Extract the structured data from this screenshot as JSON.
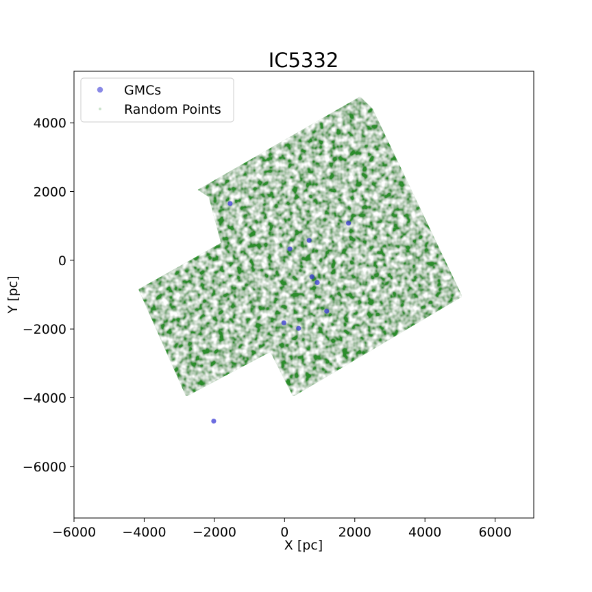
{
  "chart_data": {
    "type": "scatter",
    "title": "IC5332",
    "xlabel": "X [pc]",
    "ylabel": "Y [pc]",
    "xlim": [
      -6000,
      7100
    ],
    "ylim": [
      -7500,
      5500
    ],
    "xticks": [
      -6000,
      -4000,
      -2000,
      0,
      2000,
      4000,
      6000
    ],
    "yticks": [
      -6000,
      -4000,
      -2000,
      0,
      2000,
      4000
    ],
    "xtick_labels": [
      "−6000",
      "−4000",
      "−2000",
      "0",
      "2000",
      "4000",
      "6000"
    ],
    "ytick_labels": [
      "−6000",
      "−4000",
      "−2000",
      "0",
      "2000",
      "4000"
    ],
    "grid": false,
    "legend_position": "top-left",
    "series": [
      {
        "name": "GMCs",
        "color": "#3b3bd6",
        "points": [
          {
            "x": -1550,
            "y": 1650
          },
          {
            "x": 700,
            "y": 580
          },
          {
            "x": 1820,
            "y": 1080
          },
          {
            "x": 150,
            "y": 330
          },
          {
            "x": 780,
            "y": -480
          },
          {
            "x": 930,
            "y": -650
          },
          {
            "x": 1200,
            "y": -1480
          },
          {
            "x": -20,
            "y": -1820
          },
          {
            "x": 400,
            "y": -1980
          },
          {
            "x": -2020,
            "y": -4680
          }
        ]
      },
      {
        "name": "Random Points",
        "color": "#2a8c2a",
        "region_outline": [
          {
            "x": -2450,
            "y": 2050
          },
          {
            "x": 2150,
            "y": 4750
          },
          {
            "x": 2500,
            "y": 4400
          },
          {
            "x": 5050,
            "y": -1050
          },
          {
            "x": 250,
            "y": -3950
          },
          {
            "x": -400,
            "y": -2650
          },
          {
            "x": -2800,
            "y": -3950
          },
          {
            "x": -4150,
            "y": -850
          },
          {
            "x": -1800,
            "y": 500
          },
          {
            "x": -2150,
            "y": 1850
          }
        ]
      }
    ]
  }
}
